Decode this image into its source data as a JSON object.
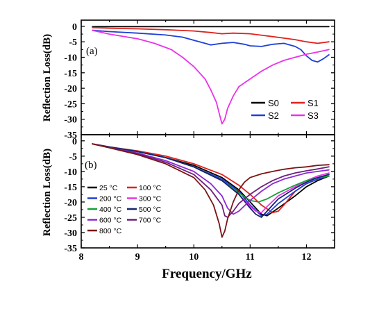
{
  "chart_data": [
    {
      "type": "line",
      "panel_label": "(a)",
      "xlabel": "",
      "ylabel": "Reflection Loss(dB)",
      "xlim": [
        8.0,
        12.5
      ],
      "ylim": [
        -35,
        2
      ],
      "yticks": [
        0,
        -5,
        -10,
        -15,
        -20,
        -25,
        -30,
        -35
      ],
      "ytick_labels": [
        "0",
        "-5",
        "-10",
        "-15",
        "-20",
        "-25",
        "-30",
        "-35"
      ],
      "legend_position": "bottom-right",
      "legend_columns": 2,
      "series": [
        {
          "name": "S0",
          "color": "#000000",
          "x": [
            8.2,
            9.0,
            10.0,
            11.0,
            12.0,
            12.4
          ],
          "y": [
            -0.1,
            -0.1,
            -0.1,
            -0.1,
            -0.1,
            -0.1
          ]
        },
        {
          "name": "S1",
          "color": "#e0221c",
          "x": [
            8.2,
            8.5,
            9.0,
            9.5,
            10.0,
            10.3,
            10.5,
            10.7,
            11.0,
            11.3,
            11.6,
            11.8,
            12.0,
            12.2,
            12.4
          ],
          "y": [
            -0.4,
            -0.6,
            -0.8,
            -1.1,
            -1.5,
            -2.0,
            -2.4,
            -2.2,
            -2.4,
            -3.1,
            -3.8,
            -4.3,
            -5.0,
            -5.5,
            -5.0
          ]
        },
        {
          "name": "S2",
          "color": "#1f3fd6",
          "x": [
            8.2,
            8.5,
            9.0,
            9.5,
            9.8,
            10.0,
            10.2,
            10.3,
            10.5,
            10.7,
            10.9,
            11.0,
            11.2,
            11.4,
            11.6,
            11.8,
            11.9,
            12.0,
            12.1,
            12.2,
            12.3,
            12.4
          ],
          "y": [
            -1.3,
            -1.7,
            -2.2,
            -2.8,
            -3.5,
            -4.5,
            -5.5,
            -6.0,
            -5.5,
            -5.2,
            -5.8,
            -6.3,
            -6.5,
            -5.8,
            -5.5,
            -6.5,
            -7.5,
            -9.5,
            -11.0,
            -11.5,
            -10.5,
            -9.2
          ]
        },
        {
          "name": "S3",
          "color": "#e933e9",
          "x": [
            8.2,
            8.5,
            9.0,
            9.3,
            9.6,
            9.8,
            10.0,
            10.2,
            10.3,
            10.4,
            10.45,
            10.5,
            10.55,
            10.6,
            10.7,
            10.8,
            11.0,
            11.2,
            11.4,
            11.6,
            11.8,
            12.0,
            12.2,
            12.4
          ],
          "y": [
            -1.3,
            -2.5,
            -4.0,
            -5.5,
            -7.5,
            -10.0,
            -13.0,
            -17.0,
            -20.5,
            -24.5,
            -28.0,
            -31.5,
            -30.0,
            -26.5,
            -22.5,
            -19.5,
            -17.0,
            -14.5,
            -12.5,
            -11.0,
            -10.0,
            -9.0,
            -8.3,
            -7.5
          ]
        }
      ]
    },
    {
      "type": "line",
      "panel_label": "(b)",
      "xlabel": "Frequency/GHz",
      "ylabel": "Reflection Loss(dB)",
      "xlim": [
        8.0,
        12.5
      ],
      "ylim": [
        -35,
        2
      ],
      "xticks": [
        8,
        9,
        10,
        11,
        12
      ],
      "xtick_labels": [
        "8",
        "9",
        "10",
        "11",
        "12"
      ],
      "yticks": [
        0,
        -5,
        -10,
        -15,
        -20,
        -25,
        -30,
        -35
      ],
      "ytick_labels": [
        "0",
        "-5",
        "-10",
        "-15",
        "-20",
        "-25",
        "-30",
        "-35"
      ],
      "legend_position": "left",
      "legend_columns": 2,
      "series": [
        {
          "name": "25 °C",
          "color": "#000000",
          "x": [
            8.2,
            8.5,
            9.0,
            9.5,
            10.0,
            10.5,
            10.8,
            11.0,
            11.2,
            11.3,
            11.5,
            11.8,
            12.0,
            12.2,
            12.4
          ],
          "y": [
            -1.0,
            -2.0,
            -3.5,
            -5.5,
            -8.0,
            -12.0,
            -16.0,
            -20.0,
            -24.0,
            -24.5,
            -22.0,
            -18.0,
            -15.0,
            -13.0,
            -11.5
          ]
        },
        {
          "name": "100 °C",
          "color": "#e0221c",
          "x": [
            8.2,
            8.5,
            9.0,
            9.5,
            10.0,
            10.5,
            10.8,
            11.0,
            11.2,
            11.4,
            11.5,
            11.6,
            11.8,
            12.0,
            12.2,
            12.4
          ],
          "y": [
            -1.0,
            -2.0,
            -3.3,
            -5.0,
            -7.5,
            -11.0,
            -14.5,
            -17.5,
            -21.0,
            -23.5,
            -23.0,
            -21.0,
            -16.5,
            -14.0,
            -12.5,
            -11.5
          ]
        },
        {
          "name": "200 °C",
          "color": "#1f3fd6",
          "x": [
            8.2,
            8.5,
            9.0,
            9.5,
            10.0,
            10.5,
            10.8,
            11.0,
            11.2,
            11.3,
            11.5,
            11.8,
            12.0,
            12.2,
            12.4
          ],
          "y": [
            -1.0,
            -2.0,
            -3.5,
            -5.5,
            -8.5,
            -12.5,
            -16.5,
            -21.0,
            -24.5,
            -24.0,
            -20.5,
            -16.5,
            -14.0,
            -12.5,
            -11.5
          ]
        },
        {
          "name": "300 °C",
          "color": "#e933e9",
          "x": [
            8.2,
            8.5,
            9.0,
            9.5,
            10.0,
            10.5,
            10.8,
            11.0,
            11.1,
            11.2,
            11.3,
            11.5,
            11.8,
            12.0,
            12.2,
            12.4
          ],
          "y": [
            -1.0,
            -2.0,
            -3.5,
            -5.5,
            -8.5,
            -13.0,
            -17.5,
            -21.5,
            -23.0,
            -23.5,
            -21.5,
            -18.0,
            -15.0,
            -13.0,
            -11.5,
            -10.5
          ]
        },
        {
          "name": "400 °C",
          "color": "#13a036",
          "x": [
            8.2,
            8.5,
            9.0,
            9.5,
            10.0,
            10.5,
            10.8,
            11.0,
            11.15,
            11.3,
            11.5,
            11.8,
            12.0,
            12.2,
            12.4
          ],
          "y": [
            -1.0,
            -2.0,
            -3.5,
            -5.5,
            -8.5,
            -13.0,
            -17.0,
            -19.5,
            -20.0,
            -19.0,
            -17.0,
            -14.5,
            -13.0,
            -12.0,
            -11.5
          ]
        },
        {
          "name": "500 °C",
          "color": "#14246e",
          "x": [
            8.2,
            8.5,
            9.0,
            9.5,
            10.0,
            10.5,
            10.8,
            11.0,
            11.1,
            11.2,
            11.3,
            11.5,
            11.8,
            12.0,
            12.2,
            12.4
          ],
          "y": [
            -1.0,
            -2.0,
            -3.5,
            -5.5,
            -8.5,
            -13.0,
            -17.5,
            -22.0,
            -24.0,
            -25.0,
            -23.0,
            -19.0,
            -15.5,
            -13.5,
            -12.0,
            -11.0
          ]
        },
        {
          "name": "600 °C",
          "color": "#8b2bd0",
          "x": [
            8.2,
            8.5,
            9.0,
            9.5,
            10.0,
            10.3,
            10.5,
            10.6,
            10.7,
            10.8,
            11.0,
            11.2,
            11.4,
            11.6,
            11.8,
            12.0,
            12.2,
            12.4
          ],
          "y": [
            -1.0,
            -2.2,
            -4.0,
            -6.5,
            -10.0,
            -14.0,
            -18.0,
            -22.0,
            -24.0,
            -23.0,
            -19.5,
            -16.5,
            -14.0,
            -12.5,
            -11.5,
            -10.5,
            -10.0,
            -9.5
          ]
        },
        {
          "name": "700 °C",
          "color": "#6d1f7a",
          "x": [
            8.2,
            8.5,
            9.0,
            9.5,
            10.0,
            10.3,
            10.5,
            10.55,
            10.6,
            10.7,
            10.8,
            11.0,
            11.2,
            11.4,
            11.6,
            11.8,
            12.0,
            12.2,
            12.4
          ],
          "y": [
            -1.0,
            -2.2,
            -4.2,
            -7.0,
            -11.0,
            -16.0,
            -21.0,
            -24.5,
            -25.0,
            -23.0,
            -20.5,
            -17.5,
            -15.0,
            -13.0,
            -11.5,
            -10.5,
            -9.8,
            -9.2,
            -8.5
          ]
        },
        {
          "name": "800 °C",
          "color": "#7a1414",
          "x": [
            8.2,
            8.5,
            9.0,
            9.5,
            10.0,
            10.2,
            10.35,
            10.45,
            10.5,
            10.55,
            10.6,
            10.7,
            10.8,
            10.9,
            11.0,
            11.2,
            11.4,
            11.6,
            11.8,
            12.0,
            12.2,
            12.4
          ],
          "y": [
            -1.0,
            -2.3,
            -4.5,
            -7.5,
            -12.0,
            -16.0,
            -21.0,
            -27.0,
            -31.5,
            -29.5,
            -25.5,
            -20.0,
            -16.0,
            -13.5,
            -12.0,
            -10.8,
            -10.0,
            -9.3,
            -8.8,
            -8.5,
            -8.0,
            -7.8
          ]
        }
      ]
    }
  ]
}
